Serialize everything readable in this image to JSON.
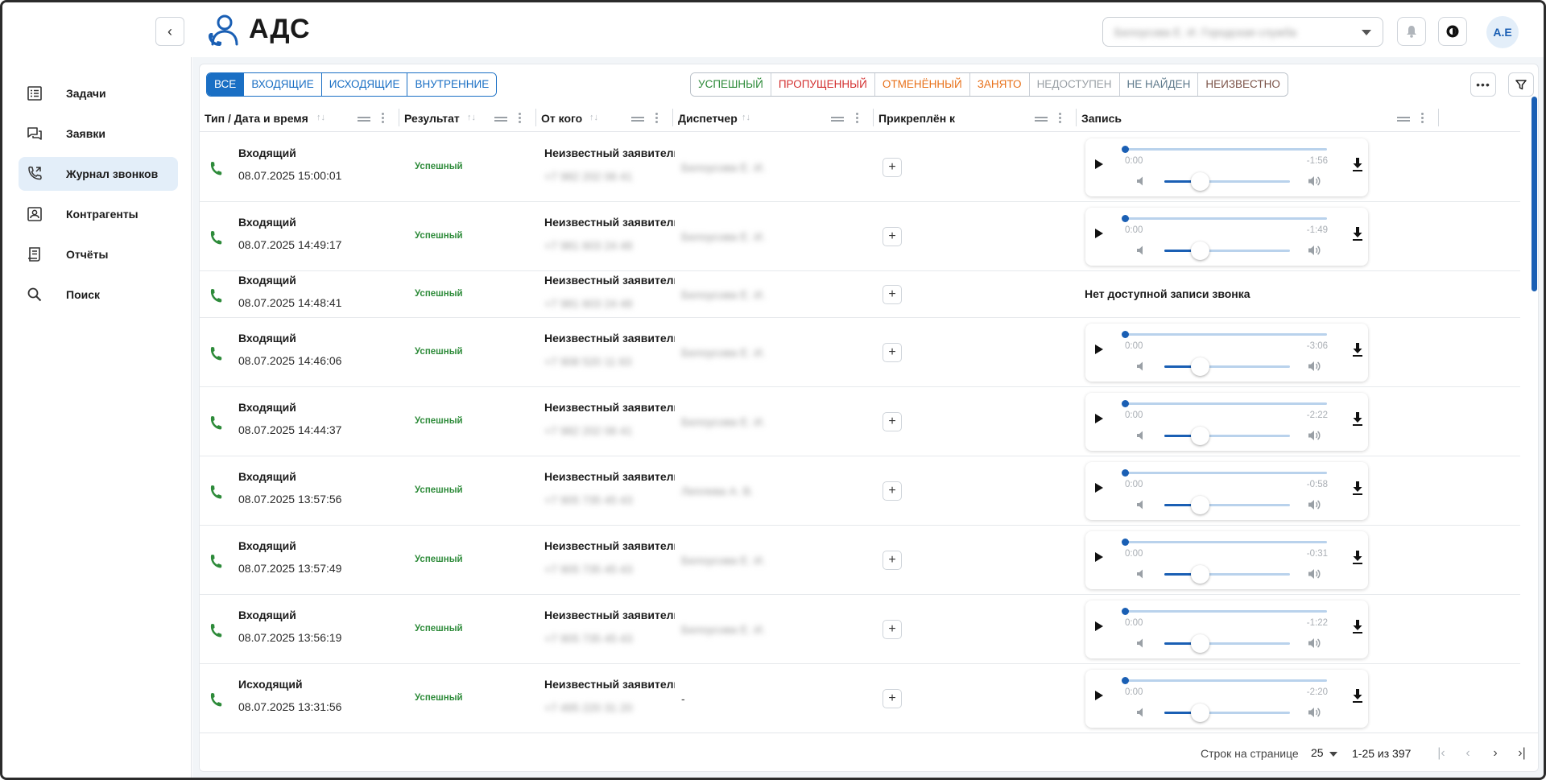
{
  "header": {
    "app_title": "АДС",
    "org_select_value": "Белоусова Е. И. Городская служба",
    "avatar_initials": "А.Е",
    "accent": "#1a5fb4"
  },
  "sidebar": {
    "items": [
      {
        "label": "Задачи",
        "icon": "tasks-icon"
      },
      {
        "label": "Заявки",
        "icon": "requests-icon"
      },
      {
        "label": "Журнал звонков",
        "icon": "call-log-icon"
      },
      {
        "label": "Контрагенты",
        "icon": "contacts-icon"
      },
      {
        "label": "Отчёты",
        "icon": "reports-icon"
      },
      {
        "label": "Поиск",
        "icon": "search-icon"
      }
    ],
    "active_index": 2
  },
  "filters": {
    "direction": [
      "ВСЕ",
      "ВХОДЯЩИЕ",
      "ИСХОДЯЩИЕ",
      "ВНУТРЕННИЕ"
    ],
    "direction_active": 0,
    "status": [
      {
        "label": "УСПЕШНЫЙ",
        "color": "#2e8b3a"
      },
      {
        "label": "ПРОПУЩЕННЫЙ",
        "color": "#d32f2f"
      },
      {
        "label": "ОТМЕНЁННЫЙ",
        "color": "#e8711a"
      },
      {
        "label": "ЗАНЯТО",
        "color": "#e8711a"
      },
      {
        "label": "НЕДОСТУПЕН",
        "color": "#9aa0a6"
      },
      {
        "label": "НЕ НАЙДЕН",
        "color": "#5f7a8c"
      },
      {
        "label": "НЕИЗВЕСТНО",
        "color": "#7b5348"
      }
    ]
  },
  "table": {
    "columns": [
      "Тип / Дата и время",
      "Результат",
      "От кого",
      "Диспетчер",
      "Прикреплён к",
      "Запись"
    ],
    "rows": [
      {
        "type": "Входящий",
        "datetime": "08.07.2025 15:00:01",
        "result": "Успешный",
        "from": "Неизвестный заявитель",
        "phone": "+7 982 202 06 41",
        "dispatcher": "Белоусова Е. И.",
        "record": {
          "current": "0:00",
          "remaining": "-1:56"
        }
      },
      {
        "type": "Входящий",
        "datetime": "08.07.2025 14:49:17",
        "result": "Успешный",
        "from": "Неизвестный заявитель",
        "phone": "+7 981 603 24 48",
        "dispatcher": "Белоусова Е. И.",
        "record": {
          "current": "0:00",
          "remaining": "-1:49"
        }
      },
      {
        "type": "Входящий",
        "datetime": "08.07.2025 14:48:41",
        "result": "Успешный",
        "from": "Неизвестный заявитель",
        "phone": "+7 981 603 24 48",
        "dispatcher": "Белоусова Е. И.",
        "record": null,
        "no_record": "Нет доступной записи звонка"
      },
      {
        "type": "Входящий",
        "datetime": "08.07.2025 14:46:06",
        "result": "Успешный",
        "from": "Неизвестный заявитель",
        "phone": "+7 908 520 11 63",
        "dispatcher": "Белоусова Е. И.",
        "record": {
          "current": "0:00",
          "remaining": "-3:06"
        }
      },
      {
        "type": "Входящий",
        "datetime": "08.07.2025 14:44:37",
        "result": "Успешный",
        "from": "Неизвестный заявитель",
        "phone": "+7 982 202 06 41",
        "dispatcher": "Белоусова Е. И.",
        "record": {
          "current": "0:00",
          "remaining": "-2:22"
        }
      },
      {
        "type": "Входящий",
        "datetime": "08.07.2025 13:57:56",
        "result": "Успешный",
        "from": "Неизвестный заявитель",
        "phone": "+7 905 735 45 43",
        "dispatcher": "Леплева А. В.",
        "record": {
          "current": "0:00",
          "remaining": "-0:58"
        }
      },
      {
        "type": "Входящий",
        "datetime": "08.07.2025 13:57:49",
        "result": "Успешный",
        "from": "Неизвестный заявитель",
        "phone": "+7 905 735 45 43",
        "dispatcher": "Белоусова Е. И.",
        "record": {
          "current": "0:00",
          "remaining": "-0:31"
        }
      },
      {
        "type": "Входящий",
        "datetime": "08.07.2025 13:56:19",
        "result": "Успешный",
        "from": "Неизвестный заявитель",
        "phone": "+7 905 735 45 43",
        "dispatcher": "Белоусова Е. И.",
        "record": {
          "current": "0:00",
          "remaining": "-1:22"
        }
      },
      {
        "type": "Исходящий",
        "datetime": "08.07.2025 13:31:56",
        "result": "Успешный",
        "from": "Неизвестный заявитель",
        "phone": "+7 495 220 31 20",
        "dispatcher": "-",
        "record": {
          "current": "0:00",
          "remaining": "-2:20"
        }
      }
    ]
  },
  "pagination": {
    "rows_per_page_label": "Строк на странице",
    "rows_per_page": "25",
    "range": "1-25 из 397"
  }
}
